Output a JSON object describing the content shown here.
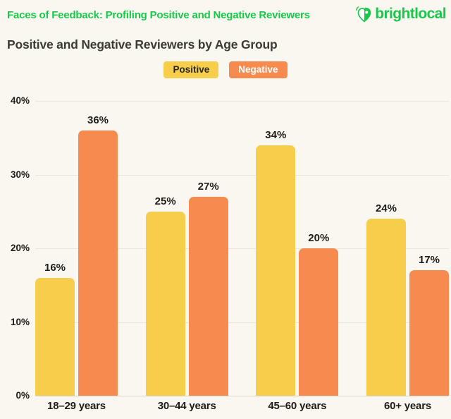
{
  "header": {
    "kicker": "Faces of Feedback: Profiling Positive and Negative Reviewers",
    "brand": "brightlocal",
    "title": "Positive and Negative Reviewers by Age Group"
  },
  "legend": [
    {
      "label": "Positive",
      "color": "#F6CE4B"
    },
    {
      "label": "Negative",
      "color": "#F78B4F"
    }
  ],
  "colors": {
    "background": "#FAF7F0",
    "green": "#19C84A",
    "positive": "#F6CE4B",
    "negative": "#F78B4F",
    "gridline": "#EAE6DC",
    "text_dark": "#1E1C18"
  },
  "chart_data": {
    "type": "bar",
    "categories": [
      "18–29 years",
      "30–44 years",
      "45–60 years",
      "60+ years"
    ],
    "series": [
      {
        "name": "Positive",
        "color": "#F6CE4B",
        "values": [
          16,
          25,
          34,
          24
        ]
      },
      {
        "name": "Negative",
        "color": "#F78B4F",
        "values": [
          36,
          27,
          20,
          17
        ]
      }
    ],
    "value_suffix": "%",
    "y_ticks": [
      "40%",
      "30%",
      "20%",
      "10%",
      "0%"
    ],
    "ylim": [
      0,
      40
    ],
    "grid": true,
    "legend_position": "top-center",
    "title": "Positive and Negative Reviewers by Age Group",
    "xlabel": "",
    "ylabel": ""
  }
}
